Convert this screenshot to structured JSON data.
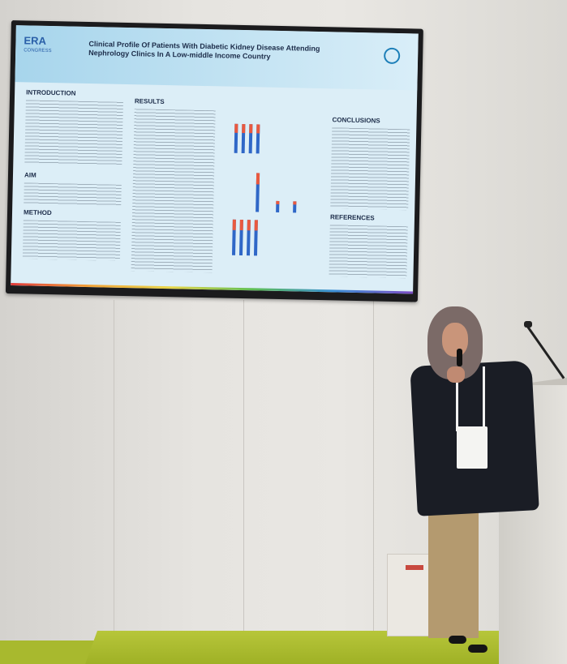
{
  "poster": {
    "logo_text": "ERA",
    "logo_sub": "CONGRESS",
    "title": "Clinical Profile Of Patients With Diabetic Kidney Disease Attending Nephrology Clinics In A Low-middle Income Country",
    "section_introduction": "INTRODUCTION",
    "section_aim": "AIM",
    "section_method": "METHOD",
    "section_results": "RESULTS",
    "section_conclusions": "CONCLUSIONS",
    "section_references": "REFERENCES"
  },
  "colors": {
    "accent_blue": "#2f67c7",
    "accent_red": "#e9593f",
    "floor_green": "#a8b92e"
  }
}
